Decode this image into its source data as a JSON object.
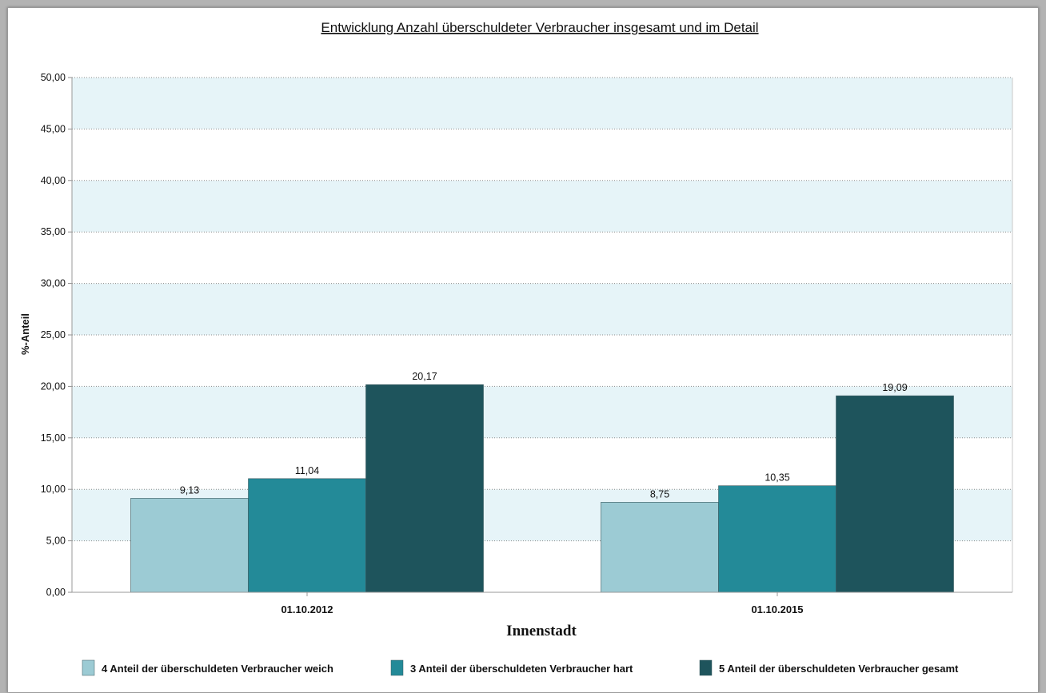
{
  "chart_data": {
    "type": "bar",
    "title": "Entwicklung Anzahl überschuldeter Verbraucher insgesamt und im Detail",
    "xlabel": "Innenstadt",
    "ylabel": "%-Anteil",
    "categories": [
      "01.10.2012",
      "01.10.2015"
    ],
    "series": [
      {
        "name": "4 Anteil der überschuldeten Verbraucher weich",
        "values": [
          9.13,
          8.75
        ],
        "labels": [
          "9,13",
          "8,75"
        ],
        "color": "#9ccbd4"
      },
      {
        "name": "3 Anteil der überschuldeten Verbraucher hart",
        "values": [
          11.04,
          10.35
        ],
        "labels": [
          "11,04",
          "10,35"
        ],
        "color": "#238a98"
      },
      {
        "name": "5 Anteil der überschuldeten Verbraucher gesamt",
        "values": [
          20.17,
          19.09
        ],
        "labels": [
          "20,17",
          "19,09"
        ],
        "color": "#1e545c"
      }
    ],
    "ylim": [
      0,
      50
    ],
    "yticks": [
      0,
      5,
      10,
      15,
      20,
      25,
      30,
      35,
      40,
      45,
      50
    ],
    "ytick_labels": [
      "0,00",
      "5,00",
      "10,00",
      "15,00",
      "20,00",
      "25,00",
      "30,00",
      "35,00",
      "40,00",
      "45,00",
      "50,00"
    ],
    "grid": true,
    "band_color": "#e6f4f8",
    "legend_position": "bottom"
  }
}
